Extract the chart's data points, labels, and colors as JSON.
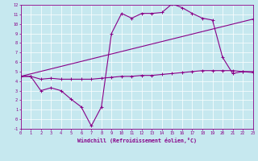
{
  "xlabel": "Windchill (Refroidissement éolien,°C)",
  "bg_color": "#c6e8ef",
  "line_color": "#880088",
  "grid_color": "#ffffff",
  "xmin": 0,
  "xmax": 23,
  "ymin": -1,
  "ymax": 12,
  "line1_x": [
    0,
    1,
    2,
    3,
    4,
    5,
    6,
    7,
    8,
    9,
    10,
    11,
    12,
    13,
    14,
    15,
    16,
    17,
    18,
    19,
    20,
    21,
    22,
    23
  ],
  "line1_y": [
    4.5,
    4.5,
    3.0,
    3.3,
    3.0,
    2.1,
    1.3,
    -0.7,
    1.3,
    9.0,
    11.1,
    10.6,
    11.1,
    11.1,
    11.2,
    12.1,
    11.7,
    11.1,
    10.6,
    10.4,
    6.5,
    4.8,
    5.0,
    5.0
  ],
  "line2_x": [
    0,
    1,
    2,
    3,
    4,
    5,
    6,
    7,
    8,
    9,
    10,
    11,
    12,
    13,
    14,
    15,
    16,
    17,
    18,
    19,
    20,
    21,
    22,
    23
  ],
  "line2_y": [
    4.5,
    4.5,
    4.2,
    4.3,
    4.2,
    4.2,
    4.2,
    4.2,
    4.3,
    4.4,
    4.5,
    4.5,
    4.6,
    4.6,
    4.7,
    4.8,
    4.9,
    5.0,
    5.1,
    5.1,
    5.1,
    5.1,
    5.0,
    4.9
  ],
  "line3_x": [
    0,
    23
  ],
  "line3_y": [
    4.5,
    10.5
  ]
}
